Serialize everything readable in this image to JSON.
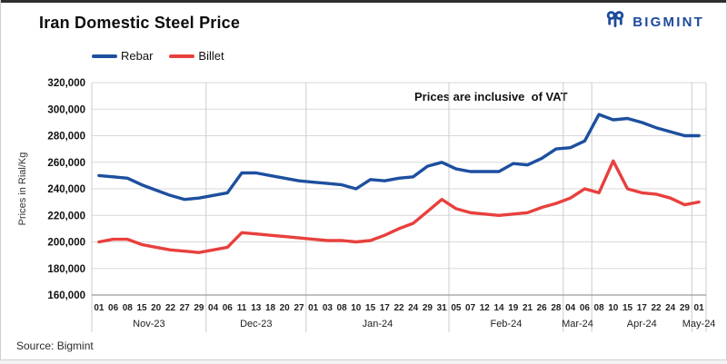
{
  "header": {
    "title": "Iran Domestic Steel Price",
    "brand": "BIGMINT"
  },
  "legend": [
    {
      "label": "Rebar",
      "color": "#1d4f9f"
    },
    {
      "label": "Billet",
      "color": "#e8403d"
    }
  ],
  "annotation": "Prices are inclusive  of VAT",
  "source": "Source: Bigmint",
  "colors": {
    "brand_blue": "#1d4b9c",
    "rebar_line": "#1d4f9f",
    "billet_line": "#e8403d",
    "gridline": "#d9d9d9",
    "axis_line": "#9a9a9a"
  },
  "chart_data": {
    "type": "line",
    "title": "Iran Domestic Steel Price",
    "xlabel": "",
    "ylabel": "Prices in Rial/Kg",
    "ylim": [
      160000,
      320000
    ],
    "ytick_step": 20000,
    "grid": true,
    "legend_position": "top-left",
    "annotation": "Prices are inclusive  of VAT",
    "months": [
      {
        "label": "Nov-23",
        "days": [
          "01",
          "06",
          "08",
          "15",
          "20",
          "22",
          "27",
          "29"
        ]
      },
      {
        "label": "Dec-23",
        "days": [
          "04",
          "06",
          "11",
          "13",
          "18",
          "20",
          "27"
        ]
      },
      {
        "label": "Jan-24",
        "days": [
          "01",
          "03",
          "08",
          "10",
          "15",
          "17",
          "22",
          "24",
          "29",
          "31"
        ]
      },
      {
        "label": "Feb-24",
        "days": [
          "05",
          "07",
          "12",
          "14",
          "19",
          "21",
          "26",
          "28"
        ]
      },
      {
        "label": "Mar-24",
        "days": [
          "04",
          "06"
        ]
      },
      {
        "label": "Apr-24",
        "days": [
          "08",
          "10",
          "15",
          "17",
          "22",
          "24",
          "29"
        ]
      },
      {
        "label": "May-24",
        "days": [
          "01"
        ]
      }
    ],
    "series": [
      {
        "name": "Rebar",
        "color": "#1d4f9f",
        "values": [
          250000,
          249000,
          248000,
          243000,
          239000,
          235000,
          232000,
          233000,
          235000,
          237000,
          252000,
          252000,
          250000,
          248000,
          246000,
          245000,
          244000,
          243000,
          240000,
          247000,
          246000,
          248000,
          249000,
          257000,
          260000,
          255000,
          253000,
          253000,
          253000,
          259000,
          258000,
          263000,
          270000,
          271000,
          276000,
          296000,
          292000,
          293000,
          290000,
          286000,
          283000,
          280000,
          280000
        ]
      },
      {
        "name": "Billet",
        "color": "#e8403d",
        "values": [
          200000,
          202000,
          202000,
          198000,
          196000,
          194000,
          193000,
          192000,
          194000,
          196000,
          207000,
          206000,
          205000,
          204000,
          203000,
          202000,
          201000,
          201000,
          200000,
          201000,
          205000,
          210000,
          214000,
          223000,
          232000,
          225000,
          222000,
          221000,
          220000,
          221000,
          222000,
          226000,
          229000,
          233000,
          240000,
          237000,
          261000,
          240000,
          237000,
          236000,
          233000,
          228000,
          230000
        ]
      }
    ]
  }
}
